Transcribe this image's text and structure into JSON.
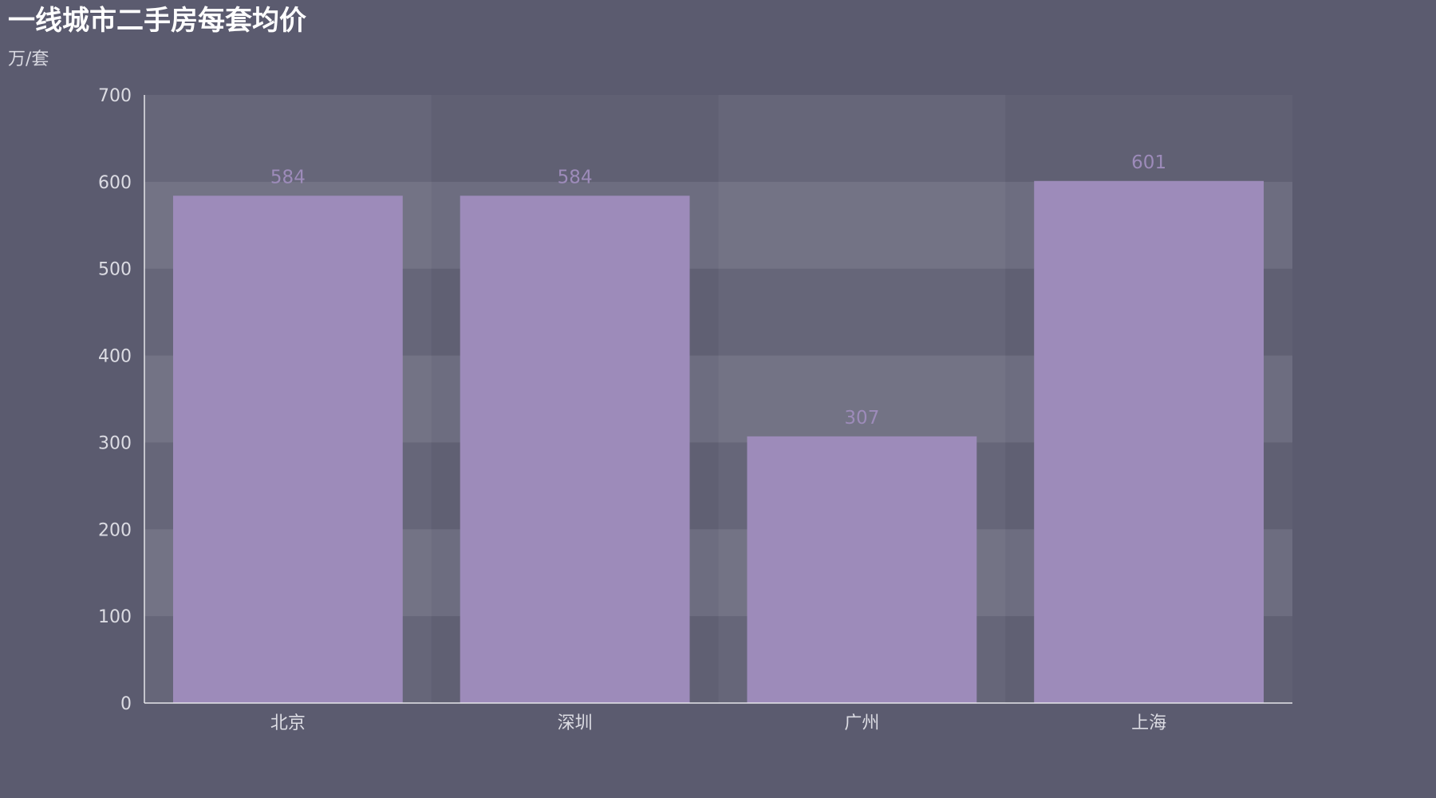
{
  "chart_data": {
    "type": "bar",
    "title": "一线城市二手房每套均价",
    "subtitle": "万/套",
    "categories": [
      "北京",
      "深圳",
      "广州",
      "上海"
    ],
    "values": [
      584,
      584,
      307,
      601
    ],
    "ylim": [
      0,
      700
    ],
    "yticks": [
      0,
      100,
      200,
      300,
      400,
      500,
      600,
      700
    ],
    "legend": "none",
    "grid": "alternating horizontal and vertical bands",
    "colors": {
      "bar": "#9d8bba",
      "data_label": "#9d8bba",
      "background": "#5b5b6f",
      "axis_line": "#e6e6ea"
    }
  }
}
